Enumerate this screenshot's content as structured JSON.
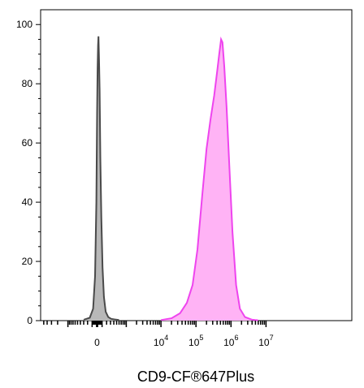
{
  "chart_data": {
    "type": "area",
    "title": "",
    "xlabel": "CD9-CF®647Plus",
    "ylabel": "",
    "y_range": [
      0,
      105
    ],
    "x_scale": "biexponential",
    "x_ticks": [
      {
        "base": "0",
        "exp": ""
      },
      {
        "base": "10",
        "exp": "4"
      },
      {
        "base": "10",
        "exp": "5"
      },
      {
        "base": "10",
        "exp": "6"
      },
      {
        "base": "10",
        "exp": "7"
      }
    ],
    "y_ticks": [
      "0",
      "20",
      "40",
      "60",
      "80",
      "100"
    ],
    "grid": false,
    "legend": "none",
    "series": [
      {
        "color_fill": "#b8b8b8",
        "color_line": "#4a4a4a",
        "points": [
          [
            -300,
            0.3
          ],
          [
            -150,
            1
          ],
          [
            -80,
            4
          ],
          [
            -40,
            15
          ],
          [
            -15,
            40
          ],
          [
            0,
            70
          ],
          [
            10,
            85
          ],
          [
            20,
            93
          ],
          [
            28,
            96
          ],
          [
            38,
            88
          ],
          [
            50,
            78
          ],
          [
            65,
            55
          ],
          [
            85,
            35
          ],
          [
            110,
            18
          ],
          [
            140,
            8
          ],
          [
            180,
            3
          ],
          [
            240,
            1.2
          ],
          [
            320,
            0.6
          ],
          [
            420,
            0.4
          ],
          [
            600,
            0.2
          ]
        ]
      },
      {
        "color_fill": "#ffb3f5",
        "color_line": "#ee44ee",
        "points": [
          [
            10000,
            0.2
          ],
          [
            20000,
            0.8
          ],
          [
            35000,
            2.5
          ],
          [
            55000,
            6
          ],
          [
            80000,
            12
          ],
          [
            110000,
            24
          ],
          [
            150000,
            42
          ],
          [
            200000,
            58
          ],
          [
            260000,
            68
          ],
          [
            330000,
            76
          ],
          [
            400000,
            84
          ],
          [
            460000,
            90
          ],
          [
            520000,
            95
          ],
          [
            570000,
            94
          ],
          [
            640000,
            86
          ],
          [
            750000,
            72
          ],
          [
            900000,
            52
          ],
          [
            1100000,
            30
          ],
          [
            1400000,
            12
          ],
          [
            1800000,
            4
          ],
          [
            2500000,
            1.2
          ],
          [
            4000000,
            0.3
          ],
          [
            6000000,
            0.1
          ]
        ]
      }
    ]
  }
}
